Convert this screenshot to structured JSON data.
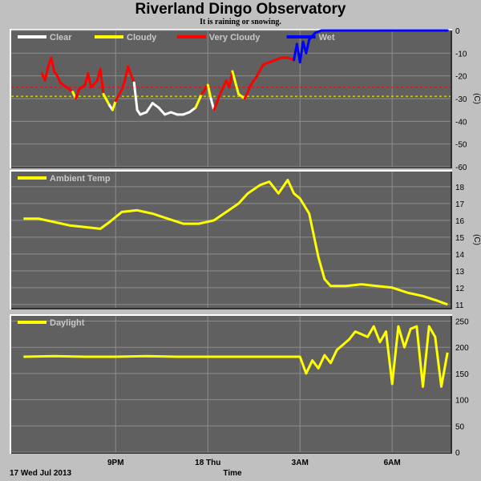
{
  "title": "Riverland Dingo Observatory",
  "subtitle": "It is raining or snowing.",
  "date_label": "17 Wed Jul 2013",
  "x_axis_label": "Time",
  "x_ticks": [
    "9PM",
    "18 Thu",
    "3AM",
    "6AM"
  ],
  "colors": {
    "background": "#c0c0c0",
    "plot_bg": "#606060",
    "grid": "#8c8c8c",
    "clear": "#ffffff",
    "cloudy": "#ffff00",
    "very_cloudy": "#ff0000",
    "wet": "#0000ff",
    "ambient": "#ffff00",
    "daylight": "#ffff00"
  },
  "chart_data": [
    {
      "type": "line",
      "panel": "sky",
      "ylabel": "(C)",
      "ylim": [
        -60,
        0
      ],
      "yticks": [
        0,
        -10,
        -20,
        -30,
        -40,
        -50,
        -60
      ],
      "legend": [
        "Clear",
        "Cloudy",
        "Very Cloudy",
        "Wet"
      ],
      "thresholds": [
        {
          "value": -25,
          "color": "#ff0000"
        },
        {
          "value": -29,
          "color": "#ffff00"
        }
      ],
      "x_hours": [
        18.6,
        18.7,
        18.8,
        18.9,
        19.0,
        19.1,
        19.2,
        19.4,
        19.6,
        19.7,
        19.8,
        20.0,
        20.1,
        20.2,
        20.4,
        20.5,
        20.6,
        20.8,
        20.9,
        21.0,
        21.2,
        21.3,
        21.4,
        21.6,
        21.7,
        21.8,
        22.0,
        22.2,
        22.4,
        22.6,
        22.8,
        23.0,
        23.2,
        23.4,
        23.6,
        23.8,
        24.0,
        24.1,
        24.2,
        24.4,
        24.6,
        24.7,
        24.8,
        25.0,
        25.2,
        25.4,
        25.6,
        25.8,
        26.0,
        26.2,
        26.4,
        26.6,
        26.8,
        26.9,
        27.0,
        27.1,
        27.2,
        27.3,
        27.5,
        27.7,
        28.0,
        29.0,
        30.0,
        31.0,
        31.8
      ],
      "values": [
        -19,
        -22,
        -16,
        -12,
        -18,
        -20,
        -23,
        -25,
        -27,
        -30,
        -26,
        -24,
        -19,
        -25,
        -22,
        -17,
        -28,
        -33,
        -35,
        -31,
        -26,
        -22,
        -16,
        -23,
        -35,
        -37,
        -36,
        -32,
        -34,
        -37,
        -36,
        -37,
        -37,
        -36,
        -34,
        -28,
        -24,
        -30,
        -35,
        -28,
        -22,
        -25,
        -18,
        -28,
        -30,
        -24,
        -20,
        -15,
        -14,
        -13,
        -12,
        -12,
        -13,
        -6,
        -14,
        -5,
        -10,
        -4,
        -1,
        0,
        0,
        0,
        0,
        0,
        0
      ],
      "categories_per_point": [
        "very_cloudy",
        "very_cloudy",
        "very_cloudy",
        "very_cloudy",
        "very_cloudy",
        "very_cloudy",
        "very_cloudy",
        "very_cloudy",
        "very_cloudy",
        "cloudy",
        "very_cloudy",
        "very_cloudy",
        "very_cloudy",
        "very_cloudy",
        "very_cloudy",
        "very_cloudy",
        "very_cloudy",
        "cloudy",
        "clear",
        "cloudy",
        "very_cloudy",
        "very_cloudy",
        "very_cloudy",
        "very_cloudy",
        "clear",
        "clear",
        "clear",
        "clear",
        "clear",
        "clear",
        "clear",
        "clear",
        "clear",
        "clear",
        "clear",
        "cloudy",
        "very_cloudy",
        "cloudy",
        "clear",
        "very_cloudy",
        "very_cloudy",
        "very_cloudy",
        "very_cloudy",
        "cloudy",
        "cloudy",
        "very_cloudy",
        "very_cloudy",
        "very_cloudy",
        "very_cloudy",
        "very_cloudy",
        "very_cloudy",
        "very_cloudy",
        "very_cloudy",
        "wet",
        "wet",
        "wet",
        "wet",
        "wet",
        "wet",
        "wet",
        "wet",
        "wet",
        "wet",
        "wet",
        "wet"
      ]
    },
    {
      "type": "line",
      "panel": "ambient",
      "ylabel": "(C)",
      "ylim": [
        10.8,
        18.9
      ],
      "yticks": [
        18,
        17,
        16,
        15,
        14,
        13,
        12,
        11
      ],
      "legend": [
        "Ambient Temp"
      ],
      "x_hours": [
        18.0,
        18.5,
        19.0,
        19.5,
        20.0,
        20.5,
        20.8,
        21.2,
        21.7,
        22.2,
        22.7,
        23.2,
        23.7,
        24.2,
        24.6,
        25.0,
        25.3,
        25.7,
        26.0,
        26.3,
        26.6,
        26.8,
        27.0,
        27.3,
        27.6,
        27.8,
        28.0,
        28.2,
        28.5,
        29.0,
        29.5,
        30.0,
        30.5,
        31.0,
        31.5,
        31.8
      ],
      "values": [
        16.1,
        16.1,
        15.9,
        15.7,
        15.6,
        15.5,
        15.9,
        16.5,
        16.6,
        16.4,
        16.1,
        15.8,
        15.8,
        16.0,
        16.5,
        17.0,
        17.6,
        18.1,
        18.3,
        17.6,
        18.4,
        17.6,
        17.3,
        16.4,
        13.8,
        12.5,
        12.1,
        12.1,
        12.1,
        12.2,
        12.1,
        12.0,
        11.7,
        11.5,
        11.2,
        11.0
      ]
    },
    {
      "type": "line",
      "panel": "daylight",
      "ylim": [
        0,
        260
      ],
      "yticks": [
        250,
        200,
        150,
        100,
        50,
        0
      ],
      "legend": [
        "Daylight"
      ],
      "x_hours": [
        18.0,
        19.0,
        20.0,
        21.0,
        22.0,
        23.0,
        24.0,
        25.0,
        26.0,
        27.0,
        27.2,
        27.4,
        27.6,
        27.8,
        28.0,
        28.2,
        28.4,
        28.6,
        28.8,
        29.0,
        29.2,
        29.4,
        29.6,
        29.8,
        30.0,
        30.2,
        30.4,
        30.6,
        30.8,
        31.0,
        31.2,
        31.4,
        31.6,
        31.8
      ],
      "values": [
        182,
        183,
        182,
        182,
        183,
        182,
        182,
        182,
        182,
        182,
        150,
        175,
        160,
        185,
        170,
        195,
        205,
        215,
        230,
        225,
        220,
        240,
        210,
        230,
        130,
        240,
        200,
        235,
        240,
        125,
        240,
        220,
        125,
        190
      ]
    }
  ]
}
